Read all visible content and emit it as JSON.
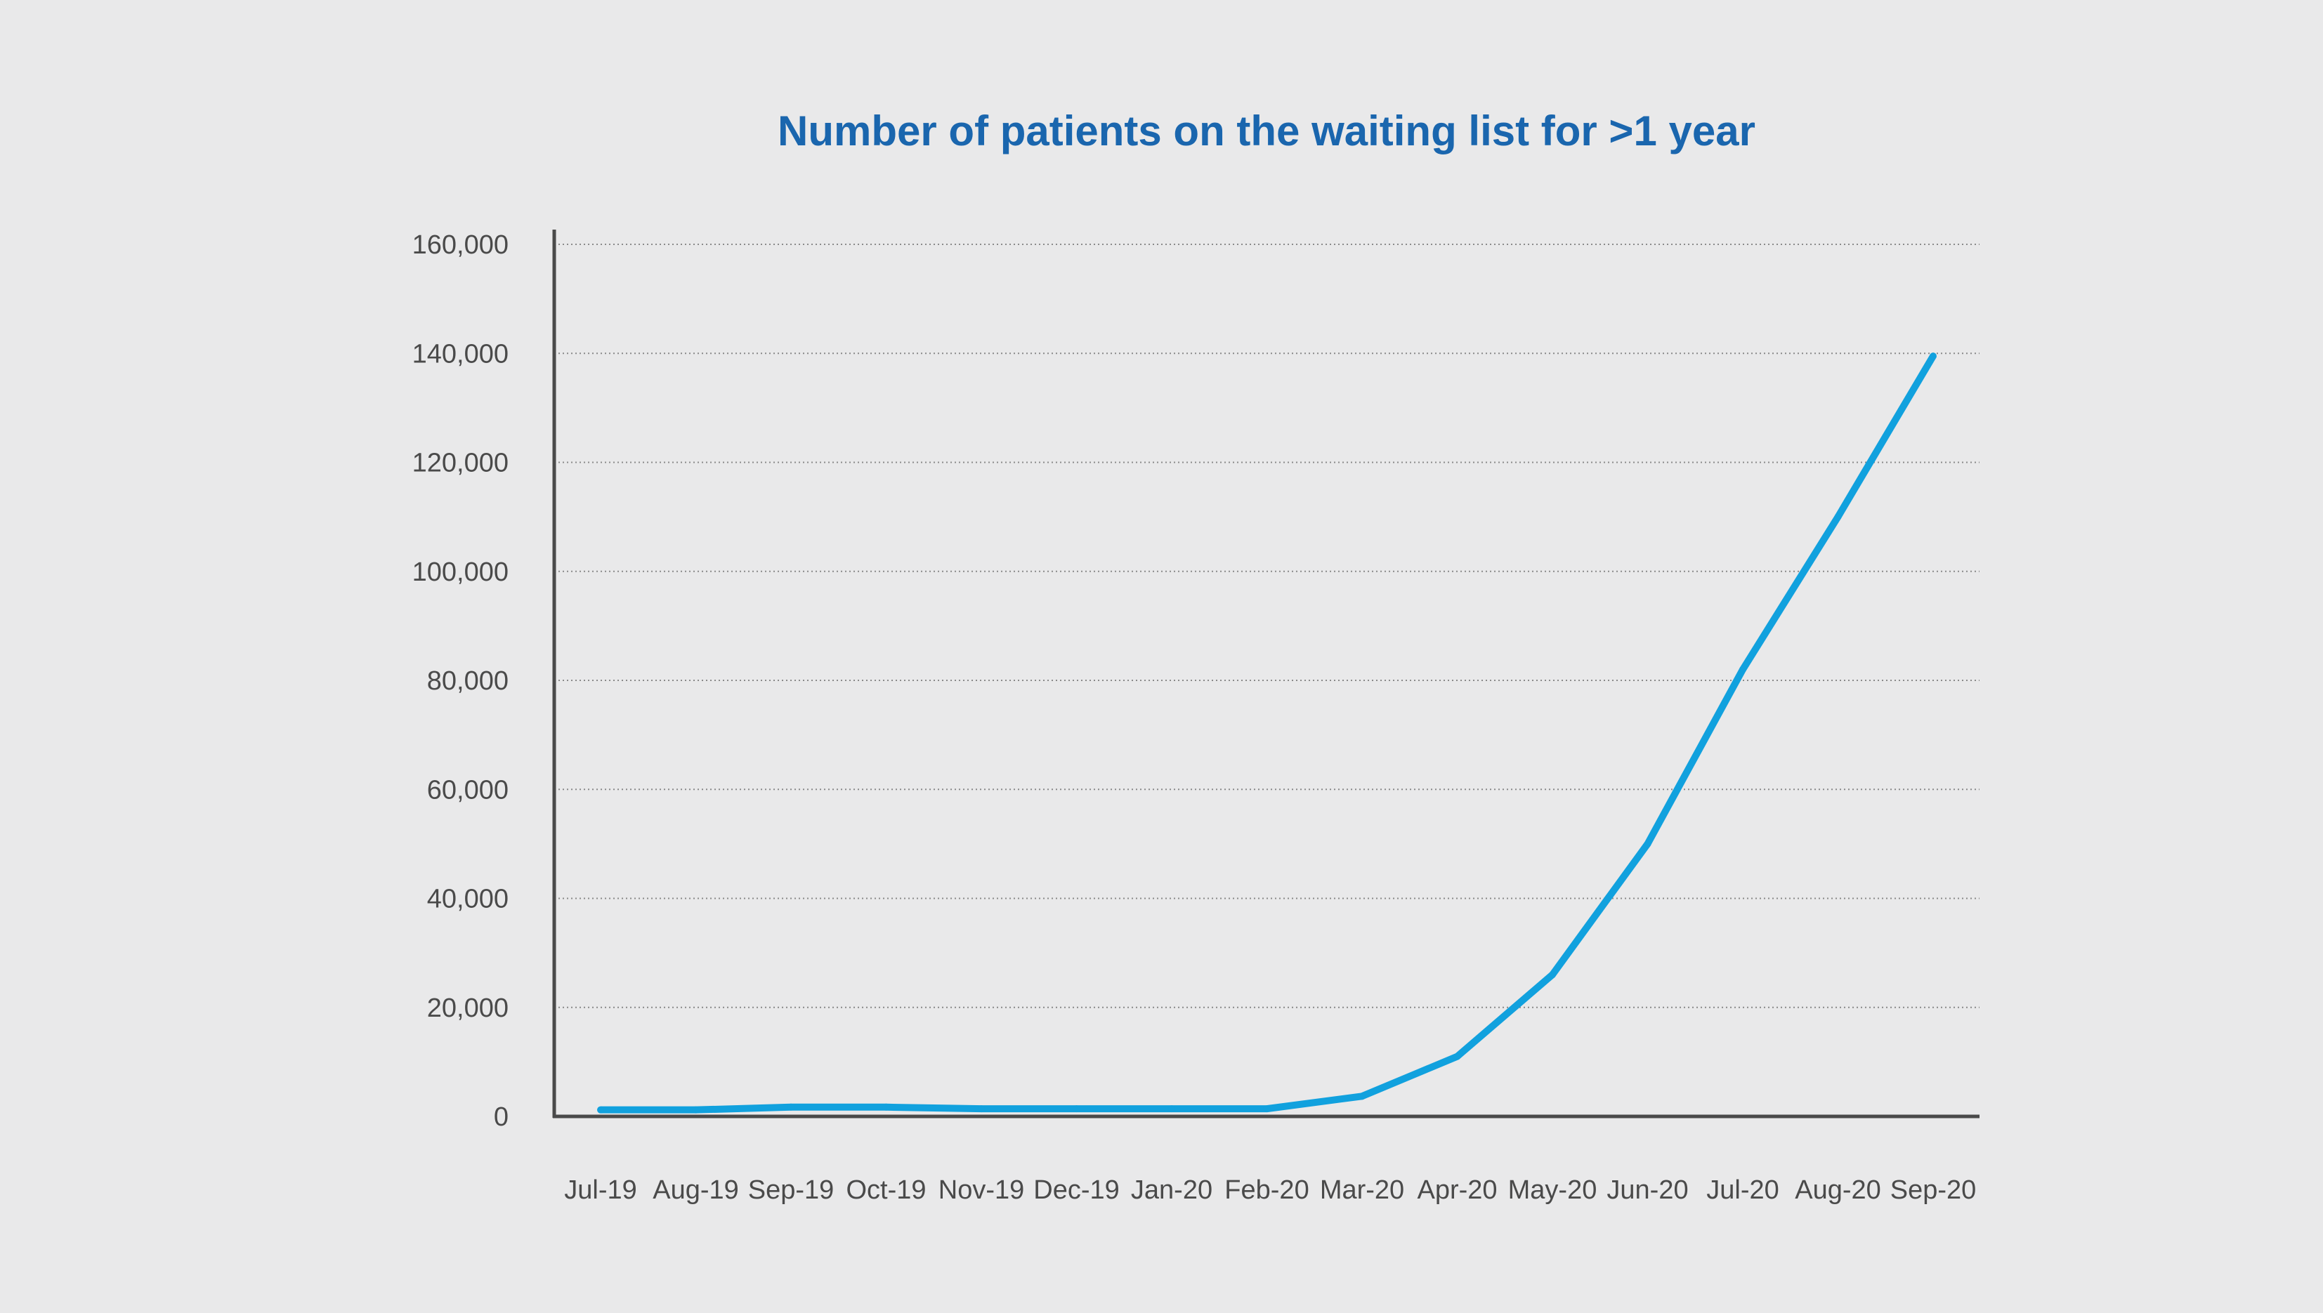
{
  "colors": {
    "background": "#e9e9ea",
    "title": "#1a66ae",
    "line": "#11a1de",
    "axis": "#4a4a4a",
    "grid": "#8a8a8a",
    "tick_text": "#4a4a4a"
  },
  "chart_data": {
    "type": "line",
    "title": "Number of patients on the waiting list for >1 year",
    "xlabel": "",
    "ylabel": "",
    "categories": [
      "Jul-19",
      "Aug-19",
      "Sep-19",
      "Oct-19",
      "Nov-19",
      "Dec-19",
      "Jan-20",
      "Feb-20",
      "Mar-20",
      "Apr-20",
      "May-20",
      "Jun-20",
      "Jul-20",
      "Aug-20",
      "Sep-20"
    ],
    "series": [
      {
        "values": [
          1200,
          1200,
          1700,
          1700,
          1400,
          1400,
          1400,
          1400,
          3700,
          11000,
          26000,
          50000,
          82000,
          110000,
          139500
        ]
      }
    ],
    "ylim": [
      0,
      160000
    ],
    "yticks": [
      0,
      20000,
      40000,
      60000,
      80000,
      100000,
      120000,
      140000,
      160000
    ],
    "ytick_labels": [
      "0",
      "20,000",
      "40,000",
      "60,000",
      "80,000",
      "100,000",
      "120,000",
      "140,000",
      "160,000"
    ],
    "grid": true,
    "grid_style": "dotted horizontal",
    "legend": "none"
  }
}
